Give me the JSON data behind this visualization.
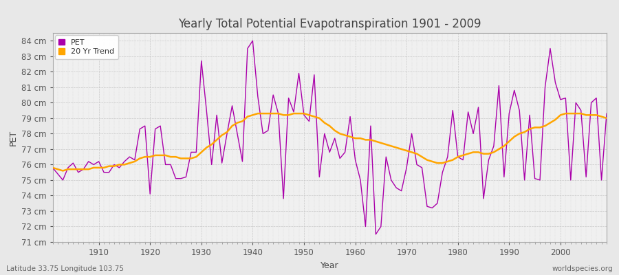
{
  "title": "Yearly Total Potential Evapotranspiration 1901 - 2009",
  "xlabel": "Year",
  "ylabel": "PET",
  "subtitle_left": "Latitude 33.75 Longitude 103.75",
  "subtitle_right": "worldspecies.org",
  "pet_color": "#AA00AA",
  "trend_color": "#FFA500",
  "background_color": "#E8E8E8",
  "plot_bg_color": "#F0F0F0",
  "ylim": [
    71,
    84.5
  ],
  "yticks": [
    71,
    72,
    73,
    74,
    75,
    76,
    77,
    78,
    79,
    80,
    81,
    82,
    83,
    84
  ],
  "years": [
    1901,
    1902,
    1903,
    1904,
    1905,
    1906,
    1907,
    1908,
    1909,
    1910,
    1911,
    1912,
    1913,
    1914,
    1915,
    1916,
    1917,
    1918,
    1919,
    1920,
    1921,
    1922,
    1923,
    1924,
    1925,
    1926,
    1927,
    1928,
    1929,
    1930,
    1931,
    1932,
    1933,
    1934,
    1935,
    1936,
    1937,
    1938,
    1939,
    1940,
    1941,
    1942,
    1943,
    1944,
    1945,
    1946,
    1947,
    1948,
    1949,
    1950,
    1951,
    1952,
    1953,
    1954,
    1955,
    1956,
    1957,
    1958,
    1959,
    1960,
    1961,
    1962,
    1963,
    1964,
    1965,
    1966,
    1967,
    1968,
    1969,
    1970,
    1971,
    1972,
    1973,
    1974,
    1975,
    1976,
    1977,
    1978,
    1979,
    1980,
    1981,
    1982,
    1983,
    1984,
    1985,
    1986,
    1987,
    1988,
    1989,
    1990,
    1991,
    1992,
    1993,
    1994,
    1995,
    1996,
    1997,
    1998,
    1999,
    2000,
    2001,
    2002,
    2003,
    2004,
    2005,
    2006,
    2007,
    2008,
    2009
  ],
  "pet_values": [
    75.8,
    75.4,
    75.0,
    75.8,
    76.1,
    75.5,
    75.7,
    76.2,
    76.0,
    76.2,
    75.5,
    75.5,
    76.0,
    75.8,
    76.2,
    76.5,
    76.3,
    78.3,
    78.5,
    74.1,
    78.3,
    78.5,
    76.0,
    76.0,
    75.1,
    75.1,
    75.2,
    76.8,
    76.8,
    82.7,
    79.5,
    76.0,
    79.2,
    76.1,
    78.0,
    79.8,
    78.0,
    76.2,
    83.5,
    84.0,
    80.4,
    78.0,
    78.2,
    80.5,
    79.3,
    73.8,
    80.3,
    79.4,
    81.9,
    79.2,
    78.8,
    81.8,
    75.2,
    78.0,
    76.8,
    77.7,
    76.4,
    76.8,
    79.1,
    76.3,
    75.0,
    72.0,
    78.5,
    71.5,
    72.0,
    76.5,
    75.0,
    74.5,
    74.3,
    75.8,
    78.0,
    76.0,
    75.8,
    73.3,
    73.2,
    73.5,
    75.5,
    76.5,
    79.5,
    76.5,
    76.3,
    79.4,
    78.0,
    79.7,
    73.8,
    76.3,
    77.2,
    81.1,
    75.2,
    79.3,
    80.8,
    79.5,
    75.0,
    79.2,
    75.1,
    75.0,
    81.0,
    83.5,
    81.3,
    80.2,
    80.3,
    75.0,
    80.0,
    79.5,
    75.2,
    80.0,
    80.3,
    75.0,
    79.3
  ],
  "trend_years": [
    1901,
    1902,
    1903,
    1904,
    1905,
    1906,
    1907,
    1908,
    1909,
    1910,
    1911,
    1912,
    1913,
    1914,
    1915,
    1916,
    1917,
    1918,
    1919,
    1920,
    1921,
    1922,
    1923,
    1924,
    1925,
    1926,
    1927,
    1928,
    1929,
    1930,
    1931,
    1932,
    1933,
    1934,
    1935,
    1936,
    1937,
    1938,
    1939,
    1940,
    1941,
    1942,
    1943,
    1944,
    1945,
    1946,
    1947,
    1948,
    1949,
    1950,
    1951,
    1952,
    1953,
    1954,
    1955,
    1956,
    1957,
    1958,
    1959,
    1960,
    1961,
    1962,
    1963,
    1964,
    1965,
    1966,
    1967,
    1968,
    1969,
    1970,
    1971,
    1972,
    1973,
    1974,
    1975,
    1976,
    1977,
    1978,
    1979,
    1980,
    1981,
    1982,
    1983,
    1984,
    1985,
    1986,
    1987,
    1988,
    1989,
    1990,
    1991,
    1992,
    1993,
    1994,
    1995,
    1996,
    1997,
    1998,
    1999,
    2000,
    2001,
    2002,
    2003,
    2004,
    2005,
    2006,
    2007,
    2008,
    2009
  ],
  "trend_values": [
    75.8,
    75.7,
    75.6,
    75.7,
    75.7,
    75.7,
    75.7,
    75.7,
    75.8,
    75.8,
    75.8,
    75.9,
    75.9,
    76.0,
    76.0,
    76.1,
    76.2,
    76.4,
    76.5,
    76.5,
    76.6,
    76.6,
    76.6,
    76.5,
    76.5,
    76.4,
    76.4,
    76.4,
    76.5,
    76.8,
    77.1,
    77.3,
    77.6,
    77.9,
    78.1,
    78.5,
    78.7,
    78.8,
    79.1,
    79.2,
    79.3,
    79.3,
    79.3,
    79.3,
    79.3,
    79.2,
    79.2,
    79.3,
    79.3,
    79.3,
    79.2,
    79.1,
    79.0,
    78.7,
    78.5,
    78.2,
    78.0,
    77.9,
    77.8,
    77.7,
    77.7,
    77.6,
    77.6,
    77.5,
    77.4,
    77.3,
    77.2,
    77.1,
    77.0,
    76.9,
    76.8,
    76.7,
    76.5,
    76.3,
    76.2,
    76.1,
    76.1,
    76.2,
    76.3,
    76.5,
    76.6,
    76.7,
    76.8,
    76.8,
    76.7,
    76.7,
    76.8,
    77.0,
    77.2,
    77.5,
    77.8,
    78.0,
    78.1,
    78.3,
    78.4,
    78.4,
    78.5,
    78.7,
    78.9,
    79.2,
    79.3,
    79.3,
    79.3,
    79.3,
    79.2,
    79.2,
    79.2,
    79.1,
    79.0
  ]
}
